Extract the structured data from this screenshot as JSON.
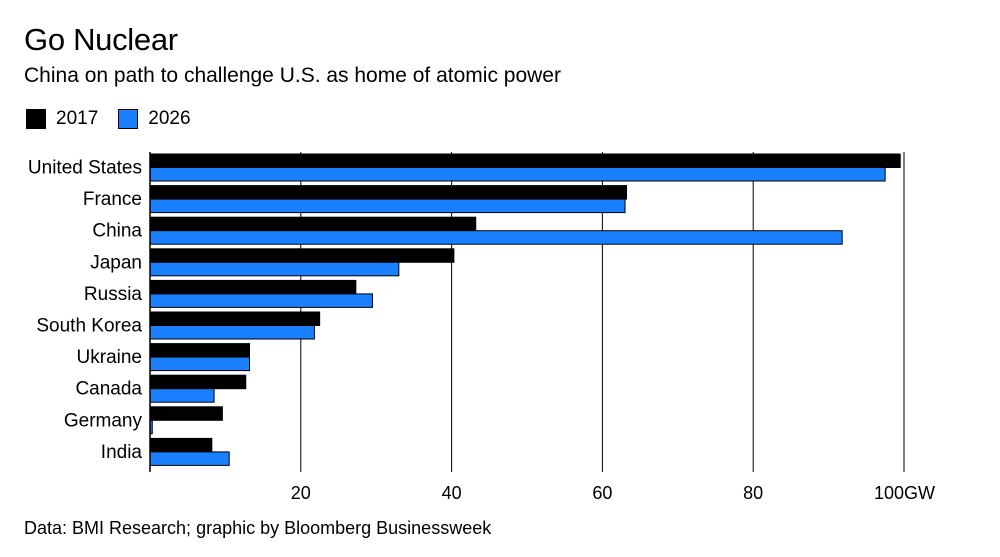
{
  "title": "Go Nuclear",
  "subtitle": "China on path to challenge U.S. as home of atomic power",
  "source": "Data: BMI Research; graphic by Bloomberg Businessweek",
  "colors": {
    "s2017": "#000000",
    "s2026": "#1a80ff"
  },
  "chart_data": {
    "type": "bar",
    "orientation": "horizontal",
    "title": "Go Nuclear",
    "subtitle": "China on path to challenge U.S. as home of atomic power",
    "categories": [
      "United States",
      "France",
      "China",
      "Japan",
      "Russia",
      "South Korea",
      "Ukraine",
      "Canada",
      "Germany",
      "India"
    ],
    "series": [
      {
        "name": "2017",
        "values": [
          99.5,
          63.2,
          43.2,
          40.3,
          27.3,
          22.5,
          13.2,
          12.7,
          9.6,
          8.2
        ]
      },
      {
        "name": "2026",
        "values": [
          97.5,
          63.0,
          91.8,
          33.0,
          29.5,
          21.8,
          13.2,
          8.5,
          0.3,
          10.5
        ]
      }
    ],
    "xlim": [
      0,
      100
    ],
    "ticks": [
      {
        "value": 20,
        "label": "20"
      },
      {
        "value": 40,
        "label": "40"
      },
      {
        "value": 60,
        "label": "60"
      },
      {
        "value": 80,
        "label": "80"
      },
      {
        "value": 100,
        "label": "100GW"
      }
    ],
    "grid": true,
    "legend_position": "top-left"
  }
}
